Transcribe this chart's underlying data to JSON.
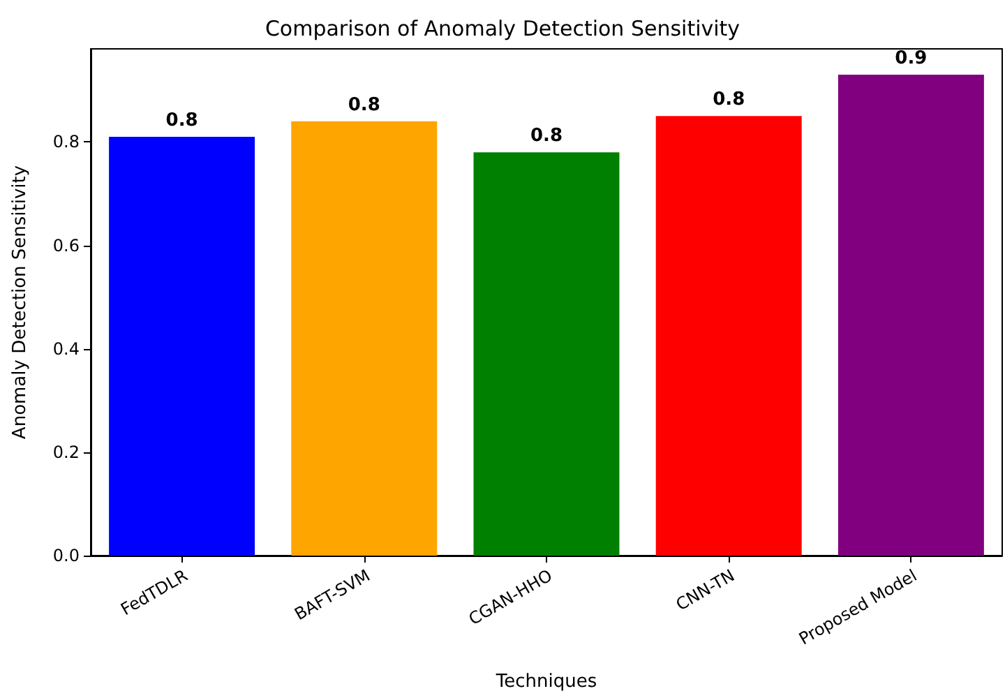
{
  "chart_data": {
    "type": "bar",
    "title": "Comparison of Anomaly Detection Sensitivity",
    "xlabel": "Techniques",
    "ylabel": "Anomaly Detection Sensitivity",
    "categories": [
      "FedTDLR",
      "BAFT-SVM",
      "CGAN-HHO",
      "CNN-TN",
      "Proposed Model"
    ],
    "values": [
      0.81,
      0.84,
      0.78,
      0.85,
      0.93
    ],
    "colors": [
      "#0000ff",
      "#ffa500",
      "#008000",
      "#ff0000",
      "#800080"
    ],
    "value_labels": [
      "0.8",
      "0.8",
      "0.8",
      "0.8",
      "0.9"
    ],
    "ylim": [
      0,
      0.98
    ],
    "yticks": [
      {
        "value": 0,
        "label": "0.0"
      },
      0.2,
      0.4,
      0.6,
      0.8
    ],
    "grid": false
  }
}
